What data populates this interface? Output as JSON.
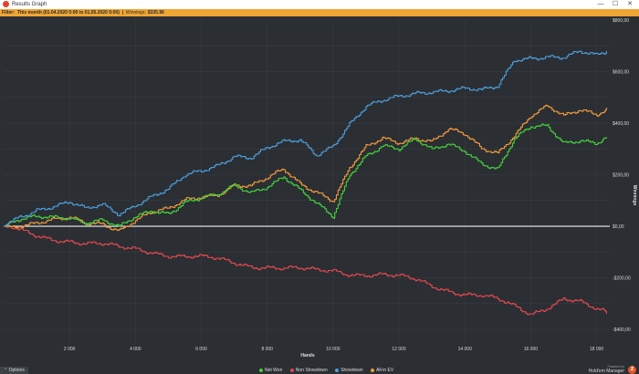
{
  "window": {
    "title": "Results Graph",
    "minimize": "—",
    "maximize": "☐",
    "close": "✕"
  },
  "filter_bar": {
    "label": "Filter:",
    "value": "This month (01.04.2020 0:00 to 01.05.2020 0:00)",
    "winnings_label": "Winnings:",
    "winnings_value": "$335.96"
  },
  "chart_data": {
    "type": "line",
    "xlabel": "Hands",
    "ylabel": "Winnings",
    "xlim": [
      0,
      18400
    ],
    "ylim": [
      -460,
      800
    ],
    "x_ticks": [
      2000,
      4000,
      6000,
      8000,
      10000,
      12000,
      14000,
      16000,
      18000
    ],
    "x_tick_labels": [
      "2 000",
      "4 000",
      "6 000",
      "8 000",
      "10 000",
      "12 000",
      "14 000",
      "16 000",
      "18 000"
    ],
    "y_ticks": [
      -400,
      -200,
      0,
      200,
      400,
      600,
      800
    ],
    "y_tick_labels": [
      "-$400,00",
      "-$200,00",
      "$0,00",
      "$200,00",
      "$400,00",
      "$600,00",
      "$800,00"
    ],
    "grid": true,
    "legend_position": "bottom",
    "x": [
      0,
      500,
      1000,
      1500,
      2000,
      2500,
      3000,
      3500,
      4000,
      4500,
      5000,
      5500,
      6000,
      6500,
      7000,
      7500,
      8000,
      8500,
      9000,
      9500,
      10000,
      10500,
      11000,
      11500,
      12000,
      12500,
      13000,
      13500,
      14000,
      14500,
      15000,
      15500,
      16000,
      16500,
      17000,
      17500,
      18000,
      18300
    ],
    "series": [
      {
        "name": "Net Won",
        "color": "#43d13a",
        "values": [
          0,
          20,
          30,
          35,
          40,
          20,
          25,
          -10,
          30,
          60,
          55,
          100,
          110,
          115,
          150,
          130,
          160,
          200,
          140,
          80,
          30,
          200,
          280,
          320,
          300,
          330,
          290,
          320,
          300,
          250,
          220,
          330,
          380,
          390,
          330,
          340,
          320,
          340
        ]
      },
      {
        "name": "Non Showdown",
        "color": "#e0484f",
        "values": [
          0,
          -20,
          -35,
          -45,
          -55,
          -70,
          -75,
          -85,
          -85,
          -95,
          -110,
          -120,
          -125,
          -130,
          -140,
          -150,
          -155,
          -165,
          -170,
          -175,
          -170,
          -180,
          -185,
          -190,
          -200,
          -210,
          -230,
          -245,
          -260,
          -270,
          -290,
          -315,
          -340,
          -310,
          -275,
          -295,
          -330,
          -340
        ]
      },
      {
        "name": "Showdown",
        "color": "#4c9edb",
        "values": [
          0,
          40,
          70,
          80,
          90,
          60,
          80,
          50,
          90,
          120,
          140,
          190,
          210,
          240,
          280,
          270,
          300,
          320,
          330,
          280,
          320,
          400,
          460,
          480,
          500,
          520,
          530,
          530,
          530,
          520,
          540,
          650,
          660,
          660,
          650,
          670,
          660,
          680
        ]
      },
      {
        "name": "All-in EV",
        "color": "#f19a3b",
        "values": [
          0,
          10,
          15,
          20,
          25,
          10,
          15,
          -10,
          25,
          50,
          60,
          100,
          120,
          130,
          160,
          150,
          180,
          220,
          170,
          140,
          100,
          220,
          300,
          340,
          330,
          350,
          330,
          370,
          350,
          300,
          290,
          360,
          430,
          460,
          420,
          450,
          440,
          460
        ]
      }
    ]
  },
  "footer": {
    "options_label": "Options",
    "options_icon": "chevron-up-icon",
    "powered_by": "Powered by",
    "brand": "Hold'em Manager",
    "brand_logo": "2"
  }
}
